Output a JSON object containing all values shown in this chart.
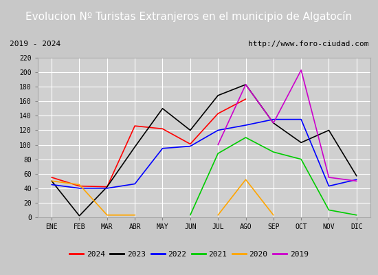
{
  "title": "Evolucion Nº Turistas Extranjeros en el municipio de Algatocín",
  "subtitle_left": "2019 - 2024",
  "subtitle_right": "http://www.foro-ciudad.com",
  "months": [
    "ENE",
    "FEB",
    "MAR",
    "ABR",
    "MAY",
    "JUN",
    "JUL",
    "AGO",
    "SEP",
    "OCT",
    "NOV",
    "DIC"
  ],
  "series": {
    "2024": {
      "color": "#ff0000",
      "data": [
        55,
        43,
        42,
        126,
        122,
        101,
        143,
        163,
        null,
        null,
        null,
        null
      ]
    },
    "2023": {
      "color": "#000000",
      "data": [
        50,
        2,
        42,
        97,
        150,
        120,
        168,
        183,
        130,
        103,
        120,
        57
      ]
    },
    "2022": {
      "color": "#0000ff",
      "data": [
        45,
        40,
        40,
        46,
        95,
        98,
        120,
        127,
        135,
        135,
        43,
        52
      ]
    },
    "2021": {
      "color": "#00cc00",
      "data": [
        null,
        null,
        null,
        null,
        null,
        3,
        88,
        110,
        90,
        80,
        10,
        3
      ]
    },
    "2020": {
      "color": "#ffa500",
      "data": [
        50,
        45,
        3,
        3,
        null,
        null,
        3,
        52,
        3,
        null,
        null,
        null
      ]
    },
    "2019": {
      "color": "#cc00cc",
      "data": [
        null,
        null,
        null,
        null,
        null,
        null,
        100,
        183,
        130,
        203,
        55,
        50
      ]
    }
  },
  "ylim": [
    0,
    220
  ],
  "yticks": [
    0,
    20,
    40,
    60,
    80,
    100,
    120,
    140,
    160,
    180,
    200,
    220
  ],
  "outer_bg_color": "#c8c8c8",
  "inner_bg_color": "#e8e8e8",
  "plot_bg_color": "#d0d0d0",
  "header_bg_color": "#4472c4",
  "title_color": "#ffffff",
  "title_fontsize": 11,
  "grid_color": "#ffffff",
  "legend_order": [
    "2024",
    "2023",
    "2022",
    "2021",
    "2020",
    "2019"
  ]
}
